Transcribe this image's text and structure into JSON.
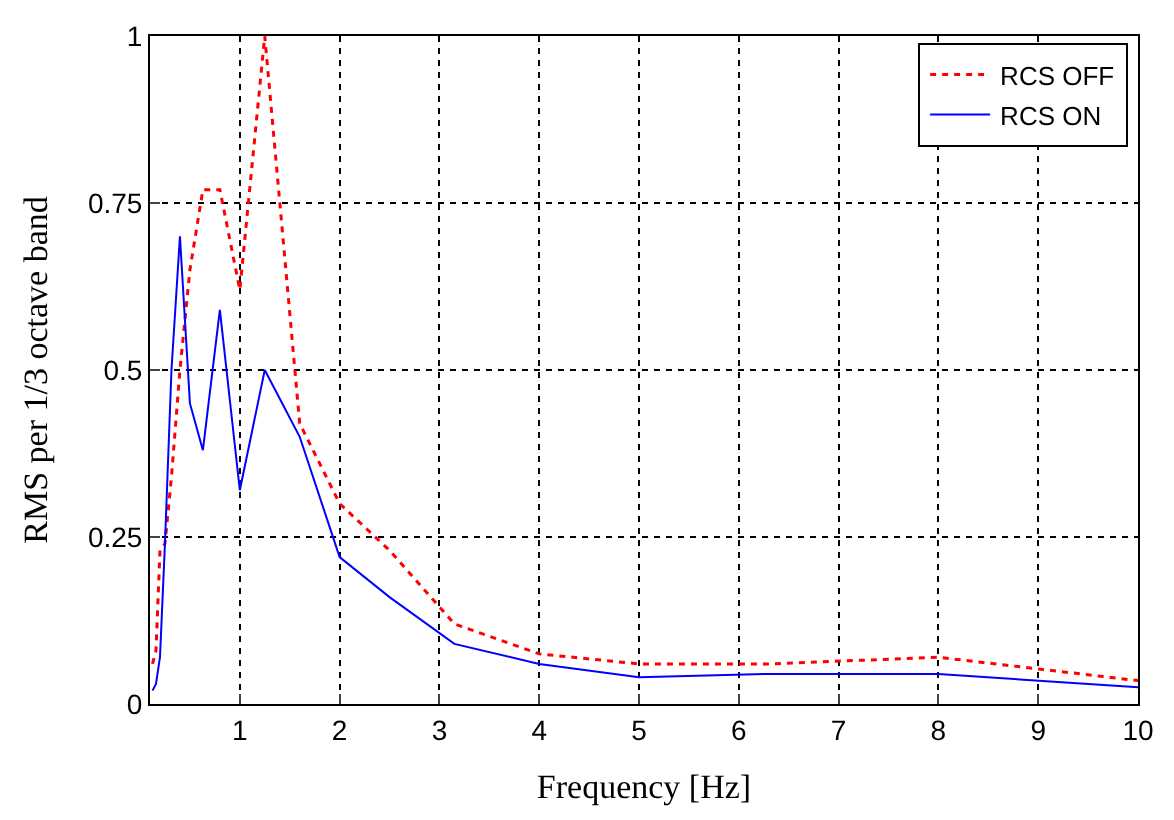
{
  "chart_data": {
    "type": "line",
    "xlabel": "Frequency [Hz]",
    "ylabel": "RMS per 1/3 octave band",
    "xlim": [
      0.1,
      10
    ],
    "ylim": [
      0,
      1
    ],
    "xticks": [
      1,
      2,
      3,
      4,
      5,
      6,
      7,
      8,
      9,
      10
    ],
    "yticks": [
      0,
      {
        "value": 0.25,
        "label": "0.25"
      },
      {
        "value": 0.5,
        "label": "0.5"
      },
      {
        "value": 0.75,
        "label": "0.75"
      },
      1
    ],
    "grid": true,
    "legend": "top right",
    "x": [
      0.125,
      0.16,
      0.2,
      0.25,
      0.315,
      0.4,
      0.5,
      0.63,
      0.8,
      1,
      1.25,
      1.6,
      2,
      2.5,
      3.15,
      4,
      5,
      6.3,
      8,
      10
    ],
    "series": [
      {
        "name": "RCS OFF",
        "color": "#ff0000",
        "line_style": "dotted",
        "values": [
          0.06,
          0.08,
          0.23,
          0.24,
          0.34,
          0.5,
          0.65,
          0.77,
          0.77,
          0.62,
          1.0,
          0.42,
          0.3,
          0.23,
          0.12,
          0.075,
          0.06,
          0.06,
          0.07,
          0.035
        ]
      },
      {
        "name": "RCS ON",
        "color": "#0000ff",
        "line_style": "solid",
        "values": [
          0.02,
          0.03,
          0.07,
          0.24,
          0.5,
          0.7,
          0.45,
          0.38,
          0.59,
          0.32,
          0.5,
          0.4,
          0.22,
          0.16,
          0.09,
          0.06,
          0.04,
          0.045,
          0.045,
          0.025
        ]
      }
    ]
  }
}
